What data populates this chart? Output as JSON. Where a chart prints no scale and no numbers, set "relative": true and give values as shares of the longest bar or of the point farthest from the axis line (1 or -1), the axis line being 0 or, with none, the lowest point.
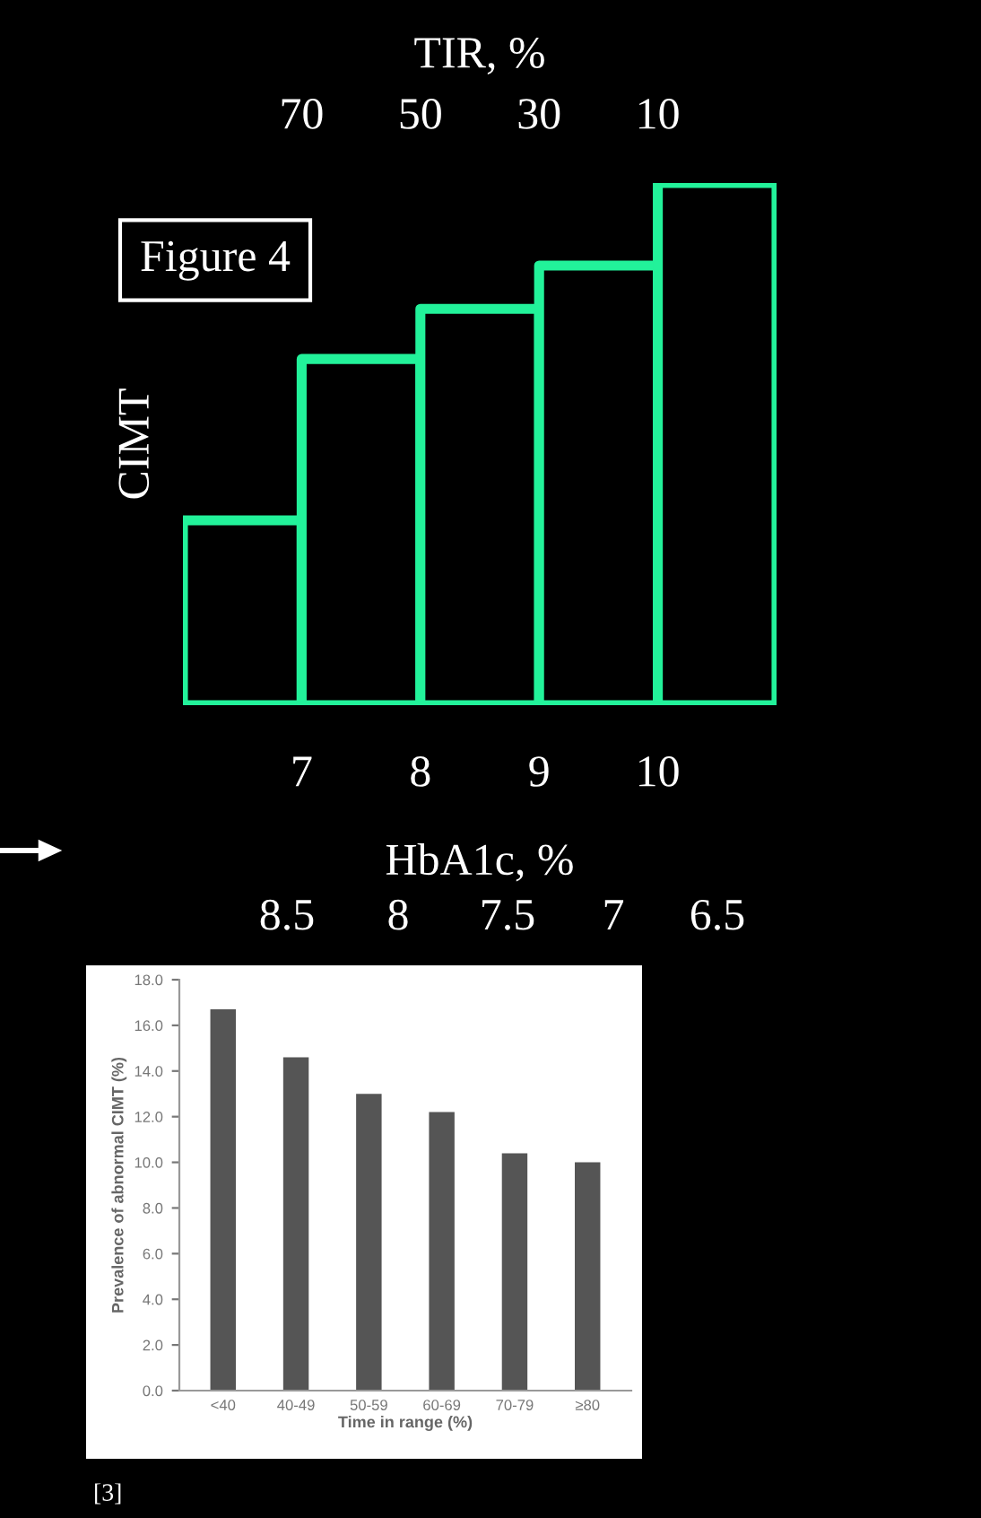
{
  "chart_data": [
    {
      "type": "bar",
      "relative": true,
      "x": [
        6.5,
        7.5,
        8.5,
        9.5,
        10.5
      ],
      "values": [
        0.354,
        0.663,
        0.759,
        0.842,
        1
      ],
      "color": "#22f29a",
      "xlim": [
        6,
        11
      ],
      "xticks": [
        7,
        8,
        9,
        10
      ],
      "xlabel": "HbA1c, %",
      "x2lim": [
        90,
        -10
      ],
      "x2ticks": [
        70,
        50,
        30,
        10
      ],
      "x2label": "TIR, %",
      "ylabel": "CIMT",
      "annotations": [
        "Figure 4",
        "8.5",
        "8",
        "7.5",
        "7",
        "6.5"
      ],
      "grid": false,
      "legend": false
    },
    {
      "type": "bar",
      "categories": [
        "<40",
        "40-49",
        "50-59",
        "60-69",
        "70-79",
        "≥80"
      ],
      "values": [
        16.7,
        14.6,
        13.0,
        12.2,
        10.4,
        10.0
      ],
      "color": "#555555",
      "ylim": [
        0,
        18
      ],
      "yticks": [
        {
          "value": 0,
          "label": "0.0"
        },
        {
          "value": 2,
          "label": "2.0"
        },
        {
          "value": 4,
          "label": "4.0"
        },
        {
          "value": 6,
          "label": "6.0"
        },
        {
          "value": 8,
          "label": "8.0"
        },
        {
          "value": 10,
          "label": "10.0"
        },
        {
          "value": 12,
          "label": "12.0"
        },
        {
          "value": 14,
          "label": "14.0"
        },
        {
          "value": 16,
          "label": "16.0"
        },
        {
          "value": 18,
          "label": "18.0"
        }
      ],
      "xlabel": "Time in range (%)",
      "ylabel": "Prevalence of abnormal CIMT (%)",
      "annotations": [
        "[3]"
      ],
      "grid": false,
      "legend": false
    }
  ]
}
